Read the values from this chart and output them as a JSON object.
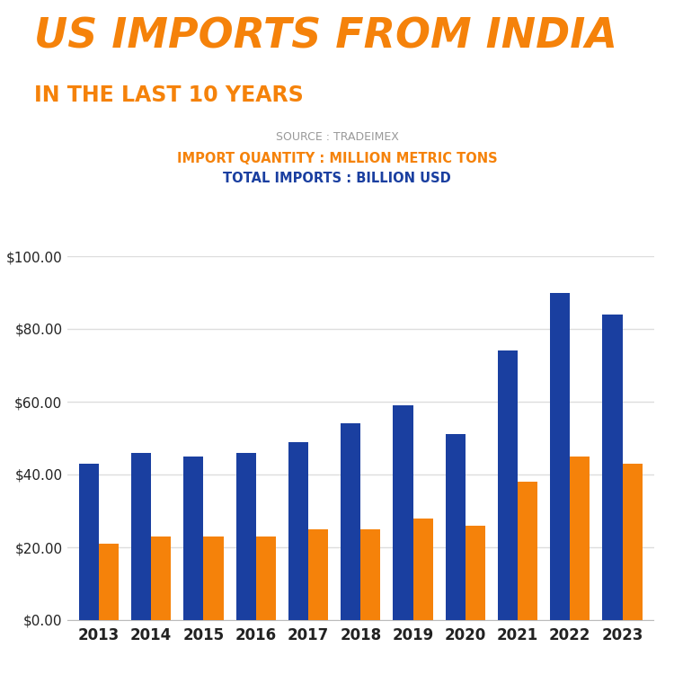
{
  "title_line1": "US IMPORTS FROM INDIA",
  "title_line2": "IN THE LAST 10 YEARS",
  "source_text": "SOURCE : TRADEIMEX",
  "legend_orange": "IMPORT QUANTITY : MILLION METRIC TONS",
  "legend_blue": "TOTAL IMPORTS : BILLION USD",
  "years": [
    2013,
    2014,
    2015,
    2016,
    2017,
    2018,
    2019,
    2020,
    2021,
    2022,
    2023
  ],
  "blue_values": [
    43,
    46,
    45,
    46,
    49,
    54,
    59,
    51,
    74,
    90,
    84
  ],
  "orange_values": [
    21,
    23,
    23,
    23,
    25,
    25,
    28,
    26,
    38,
    45,
    43
  ],
  "bar_color_blue": "#1a3fa0",
  "bar_color_orange": "#f5820a",
  "title_color_orange": "#f5820a",
  "title_color_blue": "#1a3fa0",
  "source_color": "#999999",
  "legend_orange_color": "#f5820a",
  "legend_blue_color": "#1a3fa0",
  "ylim": [
    0,
    100
  ],
  "yticks": [
    0,
    20,
    40,
    60,
    80,
    100
  ],
  "ytick_labels": [
    "$0.00",
    "$20.00",
    "$40.00",
    "$60.00",
    "$80.00",
    "$100.00"
  ],
  "bg_color": "#ffffff",
  "grid_color": "#dddddd",
  "bar_width": 0.38
}
